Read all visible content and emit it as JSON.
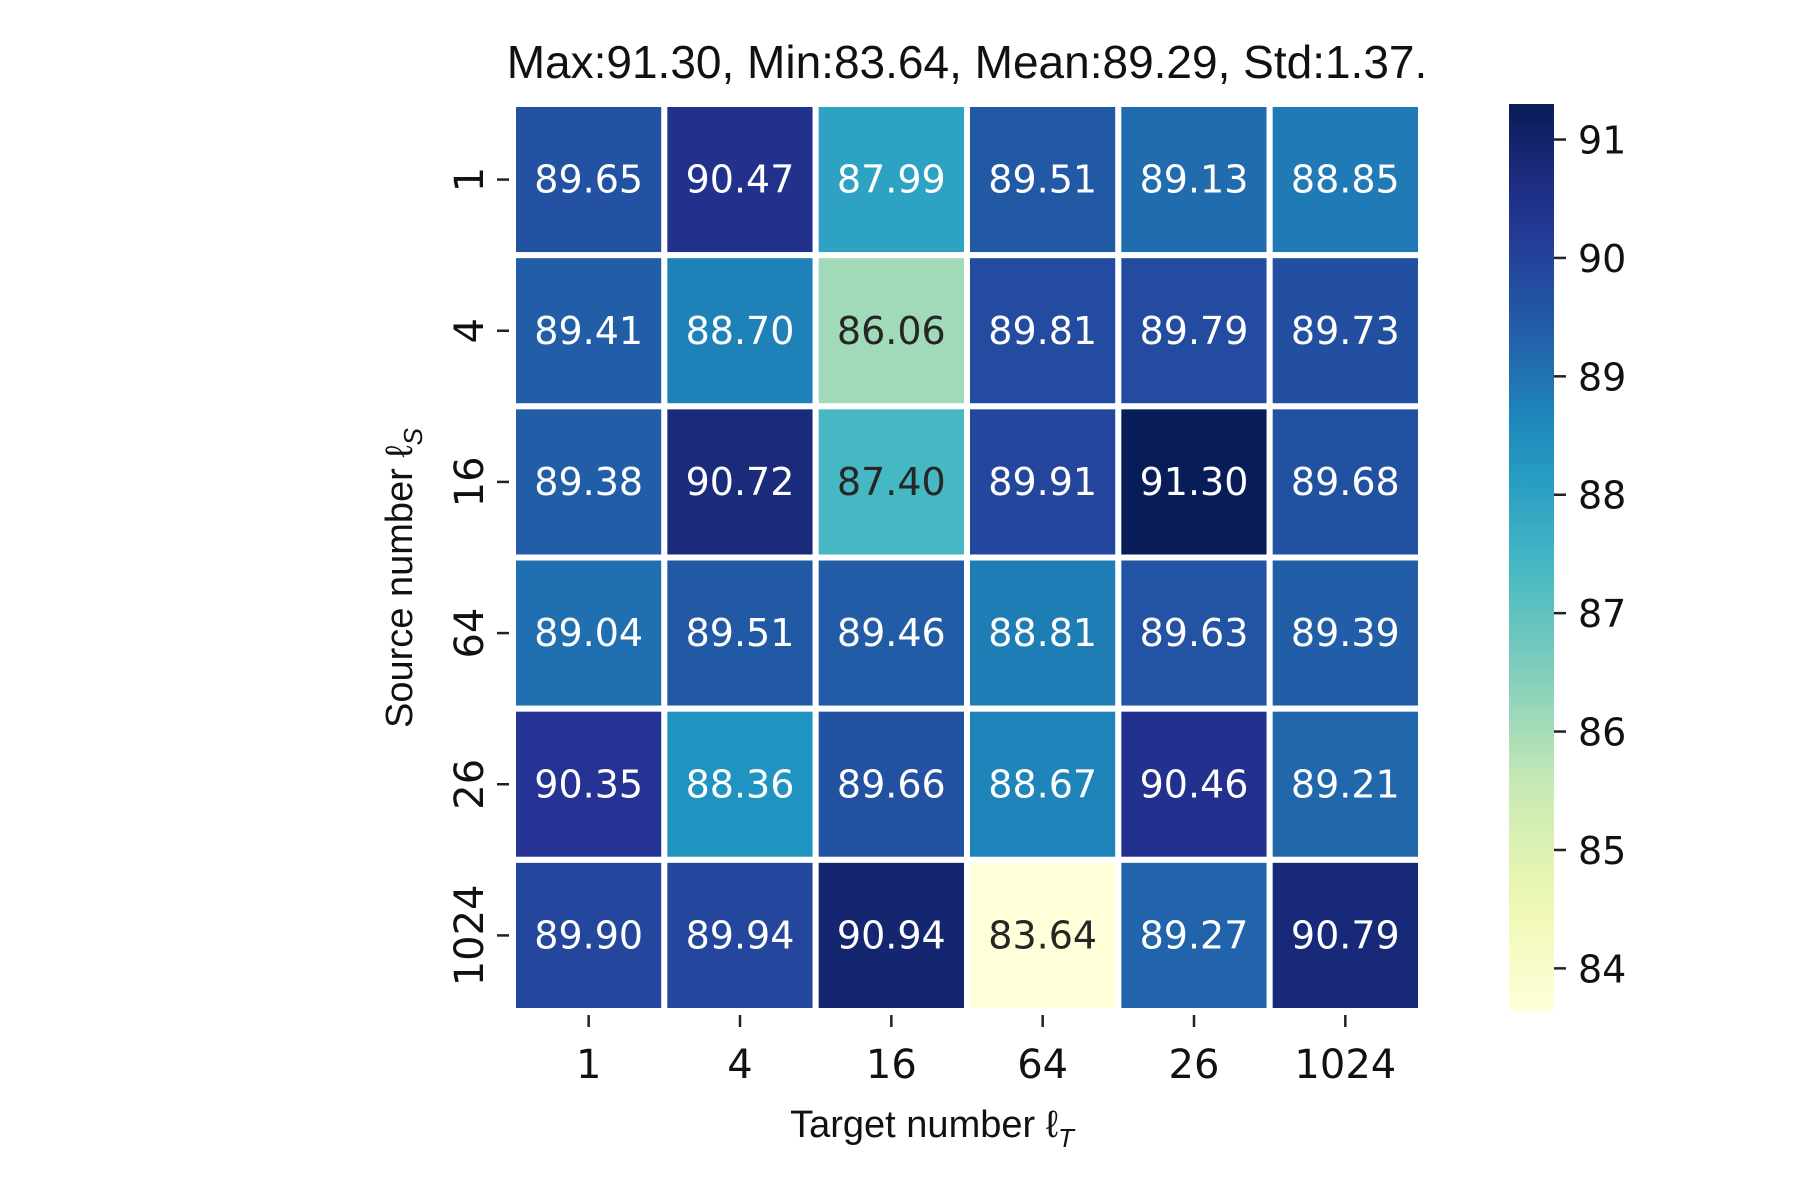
{
  "chart_data": {
    "type": "heatmap",
    "title": "Max:91.30, Min:83.64, Mean:89.29, Std:1.37.",
    "xlabel": "Target number ℓ",
    "xlabel_sub": "T",
    "ylabel": "Source number ℓ",
    "ylabel_sub": "S",
    "x_categories": [
      "1",
      "4",
      "16",
      "64",
      "26",
      "1024"
    ],
    "y_categories": [
      "1",
      "4",
      "16",
      "64",
      "26",
      "1024"
    ],
    "values": [
      [
        89.65,
        90.47,
        87.99,
        89.51,
        89.13,
        88.85
      ],
      [
        89.41,
        88.7,
        86.06,
        89.81,
        89.79,
        89.73
      ],
      [
        89.38,
        90.72,
        87.4,
        89.91,
        91.3,
        89.68
      ],
      [
        89.04,
        89.51,
        89.46,
        88.81,
        89.63,
        89.39
      ],
      [
        90.35,
        88.36,
        89.66,
        88.67,
        90.46,
        89.21
      ],
      [
        89.9,
        89.94,
        90.94,
        83.64,
        89.27,
        90.79
      ]
    ],
    "vmin": 83.64,
    "vmax": 91.3,
    "colormap": "YlGnBu",
    "colorbar_ticks": [
      "84",
      "85",
      "86",
      "87",
      "88",
      "89",
      "90",
      "91"
    ],
    "colorbar_tick_values": [
      84,
      85,
      86,
      87,
      88,
      89,
      90,
      91
    ],
    "cell_value_format": "2 decimals",
    "light_text_color": "#ffffff",
    "dark_text_color": "#262626",
    "cell_border_color": "#ffffff"
  }
}
